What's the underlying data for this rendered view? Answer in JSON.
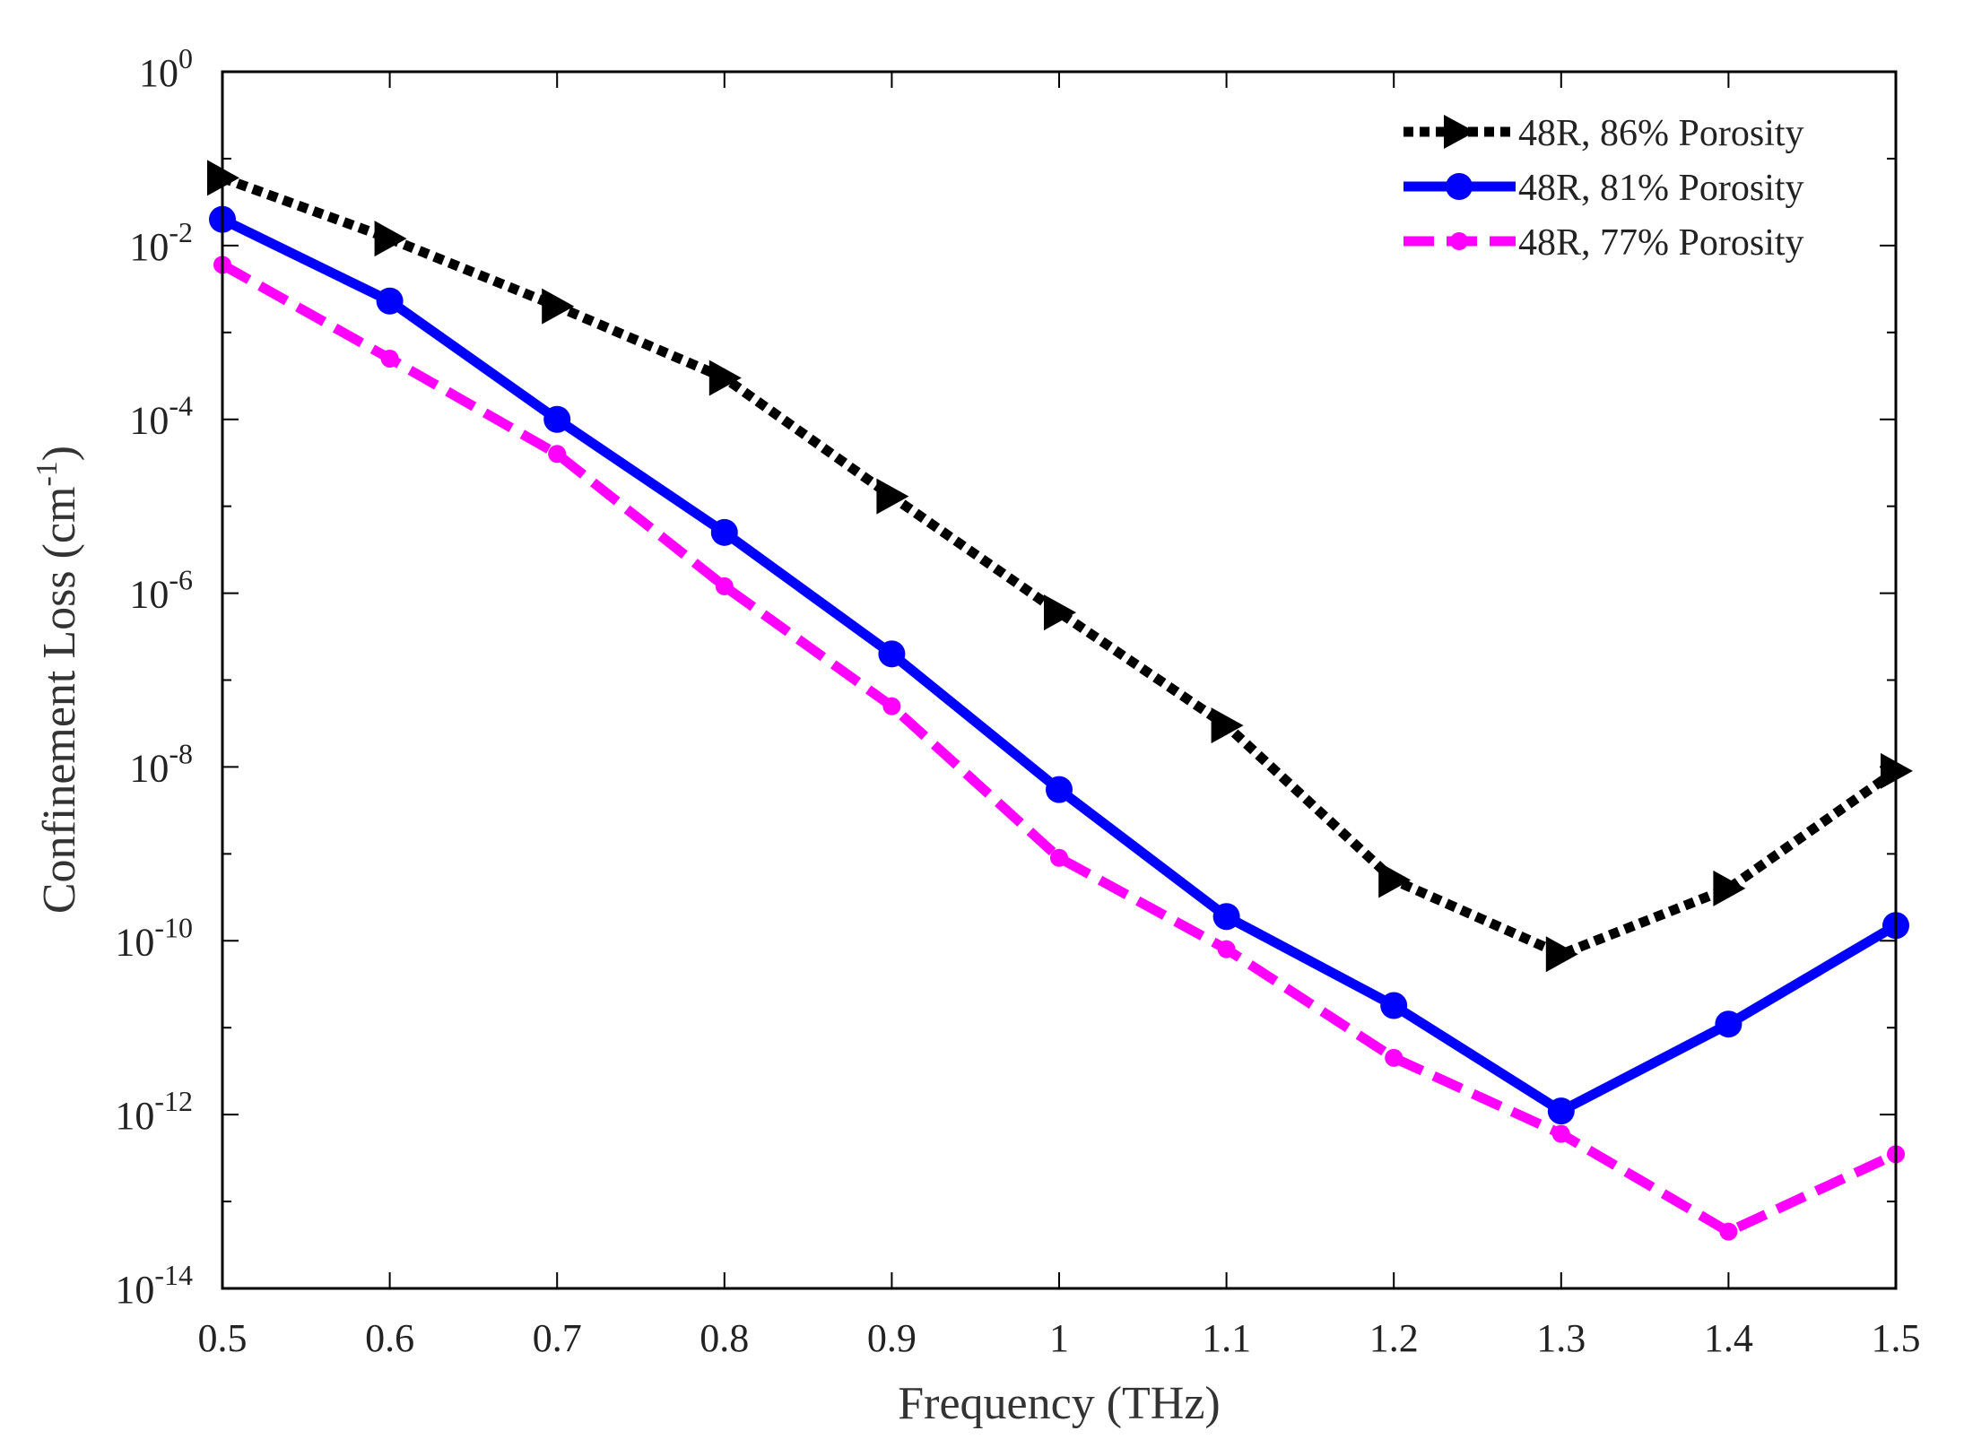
{
  "chart_data": {
    "type": "line",
    "xlabel": "Frequency (THz)",
    "ylabel": "Confinement Loss (cm",
    "ylabel_superscript": "-1",
    "ylabel_suffix": ")",
    "yscale": "log",
    "xlim": [
      0.5,
      1.5
    ],
    "ylim": [
      1e-14,
      1
    ],
    "x_ticks": [
      "0.5",
      "0.6",
      "0.7",
      "0.8",
      "0.9",
      "1",
      "1.1",
      "1.2",
      "1.3",
      "1.4",
      "1.5"
    ],
    "x_tick_values": [
      0.5,
      0.6,
      0.7,
      0.8,
      0.9,
      1.0,
      1.1,
      1.2,
      1.3,
      1.4,
      1.5
    ],
    "y_ticks": [
      {
        "base": "10",
        "exp": "0",
        "value": 1
      },
      {
        "base": "10",
        "exp": "-2",
        "value": 0.01
      },
      {
        "base": "10",
        "exp": "-4",
        "value": 0.0001
      },
      {
        "base": "10",
        "exp": "-6",
        "value": 1e-06
      },
      {
        "base": "10",
        "exp": "-8",
        "value": 1e-08
      },
      {
        "base": "10",
        "exp": "-10",
        "value": 1e-10
      },
      {
        "base": "10",
        "exp": "-12",
        "value": 1e-12
      },
      {
        "base": "10",
        "exp": "-14",
        "value": 1e-14
      }
    ],
    "legend_position": "top-right",
    "grid": false,
    "x": [
      0.5,
      0.6,
      0.7,
      0.8,
      0.9,
      1.0,
      1.1,
      1.2,
      1.3,
      1.4,
      1.5
    ],
    "series": [
      {
        "name": "48R, 86% Porosity",
        "color": "#000000",
        "style": "dotted",
        "marker": "triangle-right",
        "values": [
          0.06,
          0.012,
          0.002,
          0.0003,
          1.3e-05,
          6e-07,
          3e-08,
          5e-10,
          7e-11,
          4e-10,
          9e-09
        ]
      },
      {
        "name": "48R, 81% Porosity",
        "color": "#0000ff",
        "style": "solid",
        "marker": "circle",
        "values": [
          0.02,
          0.0023,
          0.0001,
          5e-06,
          2e-07,
          5.5e-09,
          1.9e-10,
          1.8e-11,
          1.1e-12,
          1.1e-11,
          1.5e-10
        ]
      },
      {
        "name": "48R, 77% Porosity",
        "color": "#ff00ff",
        "style": "dashed",
        "marker": "small-circle",
        "values": [
          0.006,
          0.0005,
          4e-05,
          1.2e-06,
          5e-08,
          9e-10,
          8e-11,
          4.5e-12,
          6e-13,
          4.5e-14,
          3.5e-13
        ]
      }
    ]
  }
}
